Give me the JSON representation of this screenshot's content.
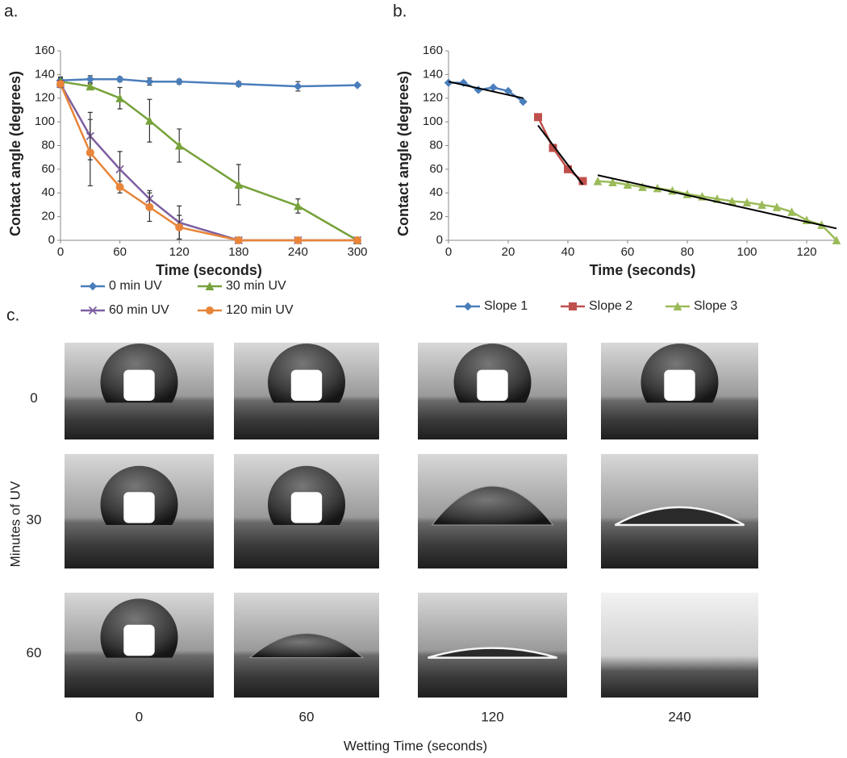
{
  "chart_data": [
    {
      "type": "line",
      "panel_label": "a.",
      "x_title": "Time (seconds)",
      "y_title": "Contact angle (degrees)",
      "xlim": [
        0,
        300
      ],
      "xticks": [
        0,
        60,
        120,
        180,
        240,
        300
      ],
      "ylim": [
        0,
        160
      ],
      "yticks": [
        0,
        20,
        40,
        60,
        80,
        100,
        120,
        140,
        160
      ],
      "legend": "bottom",
      "series": [
        {
          "name": "0 min UV",
          "color": "#4a7ebb",
          "marker": "diamond",
          "x": [
            0,
            30,
            60,
            90,
            120,
            180,
            240,
            300
          ],
          "values": [
            135,
            136,
            136,
            134,
            134,
            132,
            130,
            131
          ],
          "errors": [
            3,
            3,
            2,
            3,
            2,
            2,
            4,
            1
          ]
        },
        {
          "name": "30 min UV",
          "color": "#77a23b",
          "marker": "triangle",
          "x": [
            0,
            30,
            60,
            90,
            120,
            180,
            240,
            300
          ],
          "values": [
            134,
            130,
            120,
            101,
            80,
            47,
            29,
            0
          ],
          "errors": [
            3,
            2,
            9,
            18,
            14,
            17,
            6,
            0
          ]
        },
        {
          "name": "60 min UV",
          "color": "#7d5fa0",
          "marker": "cross",
          "x": [
            0,
            30,
            60,
            90,
            120,
            180,
            240,
            300
          ],
          "values": [
            132,
            88,
            60,
            35,
            15,
            0,
            0,
            0
          ],
          "errors": [
            3,
            20,
            15,
            7,
            14,
            0,
            0,
            0
          ]
        },
        {
          "name": "120 min UV",
          "color": "#e8853a",
          "marker": "circle",
          "x": [
            0,
            30,
            60,
            90,
            120,
            180,
            240,
            300
          ],
          "values": [
            132,
            74,
            45,
            28,
            11,
            0,
            0,
            0
          ],
          "errors": [
            3,
            28,
            5,
            12,
            10,
            0,
            0,
            0
          ]
        }
      ]
    },
    {
      "type": "line",
      "panel_label": "b.",
      "x_title": "Time (seconds)",
      "y_title": "Contact angle (degrees)",
      "xlim": [
        0,
        130
      ],
      "xticks": [
        0,
        20,
        40,
        60,
        80,
        100,
        120
      ],
      "ylim": [
        0,
        160
      ],
      "yticks": [
        0,
        20,
        40,
        60,
        80,
        100,
        120,
        140,
        160
      ],
      "legend": "bottom",
      "series": [
        {
          "name": "Slope 1",
          "color": "#4a7ebb",
          "marker": "diamond",
          "x": [
            0,
            5,
            10,
            15,
            20,
            25
          ],
          "values": [
            133,
            133,
            127,
            129,
            126,
            117
          ]
        },
        {
          "name": "Slope 2",
          "color": "#c0504d",
          "marker": "square",
          "x": [
            30,
            35,
            40,
            45
          ],
          "values": [
            104,
            78,
            60,
            50
          ]
        },
        {
          "name": "Slope 3",
          "color": "#9bbb59",
          "marker": "triangle",
          "x": [
            50,
            55,
            60,
            65,
            70,
            75,
            80,
            85,
            90,
            95,
            100,
            105,
            110,
            115,
            120,
            125,
            130
          ],
          "values": [
            50,
            49,
            47,
            45,
            44,
            42,
            39,
            37,
            35,
            33,
            32,
            30,
            28,
            24,
            17,
            13,
            0
          ]
        }
      ],
      "trendlines": [
        {
          "color": "#000000",
          "x": [
            0,
            25
          ],
          "values": [
            134,
            120
          ]
        },
        {
          "color": "#000000",
          "x": [
            30,
            45
          ],
          "values": [
            97,
            47
          ]
        },
        {
          "color": "#000000",
          "x": [
            50,
            130
          ],
          "values": [
            55,
            10
          ]
        }
      ]
    }
  ],
  "panel_c": {
    "panel_label": "c.",
    "y_title": "Minutes of UV",
    "rows": [
      "0",
      "30",
      "60"
    ],
    "columns": [
      "0",
      "60",
      "120",
      "240"
    ],
    "x_title": "Wetting Time (seconds)"
  }
}
